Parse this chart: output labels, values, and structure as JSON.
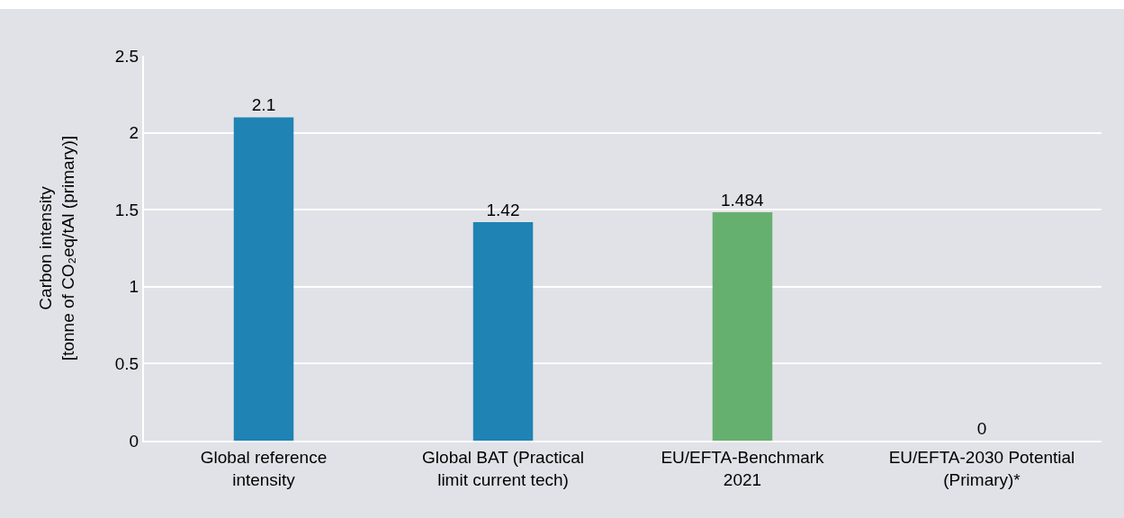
{
  "chart_data": {
    "type": "bar",
    "ylabel": "Carbon intensity\n[tonne of CO₂eq/tAl (primary)]",
    "categories": [
      "Global reference\nintensity",
      "Global BAT (Practical\nlimit current tech)",
      "EU/EFTA-Benchmark\n2021",
      "EU/EFTA-2030 Potential\n(Primary)*"
    ],
    "values": [
      2.1,
      1.42,
      1.484,
      0
    ],
    "colors": [
      "#1f83b4",
      "#1f83b4",
      "#66b06f",
      "#66b06f"
    ],
    "ylim": [
      0,
      2.5
    ],
    "yticks": [
      0,
      0.5,
      1,
      1.5,
      2,
      2.5
    ],
    "grid": "y",
    "data_labels": true
  }
}
